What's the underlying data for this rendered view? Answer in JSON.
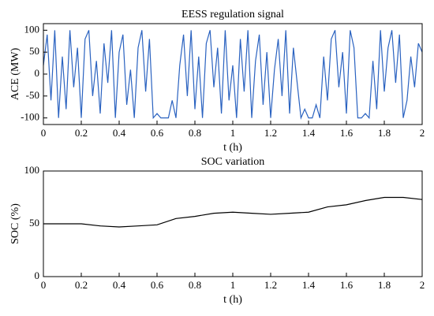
{
  "chart_data": [
    {
      "type": "line",
      "title": "EESS regulation signal",
      "xlabel": "t (h)",
      "ylabel": "ACE (MW)",
      "x": [
        0,
        0.02,
        0.04,
        0.06,
        0.08,
        0.1,
        0.12,
        0.14,
        0.16,
        0.18,
        0.2,
        0.22,
        0.24,
        0.26,
        0.28,
        0.3,
        0.32,
        0.34,
        0.36,
        0.38,
        0.4,
        0.42,
        0.44,
        0.46,
        0.48,
        0.5,
        0.52,
        0.54,
        0.56,
        0.58,
        0.6,
        0.62,
        0.64,
        0.66,
        0.68,
        0.7,
        0.72,
        0.74,
        0.76,
        0.78,
        0.8,
        0.82,
        0.84,
        0.86,
        0.88,
        0.9,
        0.92,
        0.94,
        0.96,
        0.98,
        1,
        1.02,
        1.04,
        1.06,
        1.08,
        1.1,
        1.12,
        1.14,
        1.16,
        1.18,
        1.2,
        1.22,
        1.24,
        1.26,
        1.28,
        1.3,
        1.32,
        1.34,
        1.36,
        1.38,
        1.4,
        1.42,
        1.44,
        1.46,
        1.48,
        1.5,
        1.52,
        1.54,
        1.56,
        1.58,
        1.6,
        1.62,
        1.64,
        1.66,
        1.68,
        1.7,
        1.72,
        1.74,
        1.76,
        1.78,
        1.8,
        1.82,
        1.84,
        1.86,
        1.88,
        1.9,
        1.92,
        1.94,
        1.96,
        1.98,
        2
      ],
      "values": [
        20,
        90,
        -60,
        100,
        -100,
        40,
        -80,
        100,
        -30,
        60,
        -100,
        80,
        100,
        -50,
        30,
        -90,
        70,
        -20,
        100,
        -100,
        50,
        90,
        -70,
        10,
        -100,
        60,
        100,
        -40,
        80,
        -100,
        -90,
        -100,
        -100,
        -100,
        -60,
        -100,
        20,
        90,
        -50,
        100,
        -80,
        40,
        -100,
        70,
        100,
        -30,
        60,
        -90,
        100,
        -60,
        20,
        -100,
        80,
        -40,
        100,
        -100,
        30,
        90,
        -70,
        50,
        -100,
        10,
        80,
        -50,
        100,
        -90,
        60,
        -20,
        -100,
        -80,
        -100,
        -100,
        -70,
        -100,
        40,
        -60,
        80,
        100,
        -30,
        50,
        -90,
        100,
        60,
        -100,
        -100,
        -90,
        -100,
        30,
        -80,
        100,
        -40,
        60,
        100,
        -20,
        90,
        -100,
        -60,
        40,
        -30,
        70,
        50
      ],
      "color": "#2a62c0",
      "xlim": [
        0,
        2
      ],
      "ylim": [
        -115,
        115
      ],
      "xticks": [
        0,
        0.2,
        0.4,
        0.6,
        0.8,
        1,
        1.2,
        1.4,
        1.6,
        1.8,
        2
      ],
      "yticks": [
        -100,
        -50,
        0,
        50,
        100
      ]
    },
    {
      "type": "line",
      "title": "SOC variation",
      "xlabel": "t (h)",
      "ylabel": "SOC (%)",
      "x": [
        0,
        0.1,
        0.2,
        0.3,
        0.4,
        0.5,
        0.6,
        0.7,
        0.8,
        0.9,
        1,
        1.1,
        1.2,
        1.3,
        1.4,
        1.5,
        1.6,
        1.7,
        1.8,
        1.9,
        2
      ],
      "values": [
        50,
        50,
        50,
        48,
        47,
        48,
        49,
        55,
        57,
        60,
        61,
        60,
        59,
        60,
        61,
        66,
        68,
        72,
        75,
        75,
        73
      ],
      "color": "#000000",
      "xlim": [
        0,
        2
      ],
      "ylim": [
        0,
        100
      ],
      "xticks": [
        0,
        0.2,
        0.4,
        0.6,
        0.8,
        1,
        1.2,
        1.4,
        1.6,
        1.8,
        2
      ],
      "yticks": [
        0,
        50,
        100
      ]
    }
  ]
}
